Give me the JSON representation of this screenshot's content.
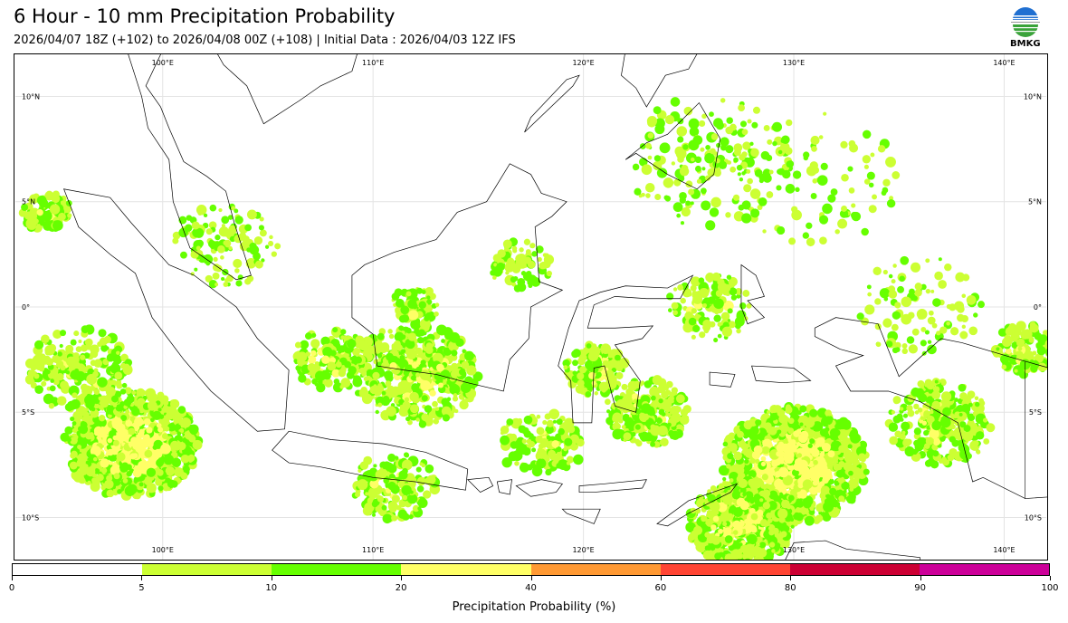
{
  "header": {
    "title": "6 Hour - 10 mm Precipitation Probability",
    "subtitle": "2026/04/07 18Z (+102) to 2026/04/08 00Z (+108) | Initial Data : 2026/04/03 12Z IFS",
    "logo_text": "BMKG"
  },
  "map": {
    "lon_labels": [
      "100°E",
      "110°E",
      "120°E",
      "130°E",
      "140°E"
    ],
    "lat_labels": [
      "10°N",
      "5°N",
      "0°",
      "5°S",
      "10°S"
    ],
    "extent": {
      "lon": [
        93,
        142
      ],
      "lat": [
        -12,
        12
      ]
    },
    "lon_values": [
      100,
      110,
      120,
      130,
      140
    ],
    "lat_values": [
      10,
      5,
      0,
      -5,
      -10
    ]
  },
  "colorbar": {
    "label": "Precipitation Probability (%)",
    "ticks": [
      "0",
      "5",
      "10",
      "20",
      "40",
      "60",
      "80",
      "90",
      "100"
    ],
    "colors": [
      "#ffffff",
      "#ccff33",
      "#66ff00",
      "#ffff66",
      "#ff9933",
      "#ff4433",
      "#cc0033",
      "#cc0099"
    ]
  }
}
